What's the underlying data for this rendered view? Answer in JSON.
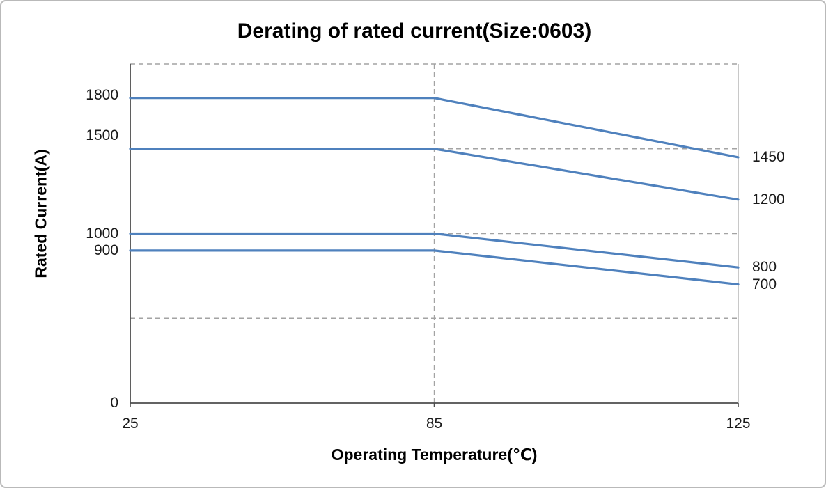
{
  "chart_data": {
    "type": "line",
    "title": "Derating of rated current(Size:0603)",
    "xlabel": "Operating Temperature(℃)",
    "ylabel": "Rated Current(A)",
    "categories": [
      "25",
      "85",
      "125"
    ],
    "series": [
      {
        "name": "1800",
        "values": [
          1800,
          1800,
          1450
        ],
        "end_label": "1450"
      },
      {
        "name": "1500",
        "values": [
          1500,
          1500,
          1200
        ],
        "end_label": "1200"
      },
      {
        "name": "1000",
        "values": [
          1000,
          1000,
          800
        ],
        "end_label": "800"
      },
      {
        "name": "900",
        "values": [
          900,
          900,
          700
        ],
        "end_label": "700"
      }
    ],
    "ylim": [
      0,
      2000
    ],
    "y_gridlines": [
      500,
      1000,
      1500,
      2000
    ],
    "vertical_gridline_at_category": "85",
    "y_tick_labels": [
      {
        "value": 1800,
        "text": "1800",
        "dy": -4
      },
      {
        "value": 1500,
        "text": "1500",
        "dy": -19
      },
      {
        "value": 1000,
        "text": "1000",
        "dy": 0
      },
      {
        "value": 900,
        "text": "900",
        "dy": 0
      },
      {
        "value": 0,
        "text": "0",
        "dy": 0
      }
    ],
    "legend": "none",
    "grid": "dashed",
    "colors": {
      "line": "#4f81bd",
      "grid": "#a3a3a3",
      "axis": "#4d4d4d",
      "text": "#1a1a1a"
    }
  }
}
